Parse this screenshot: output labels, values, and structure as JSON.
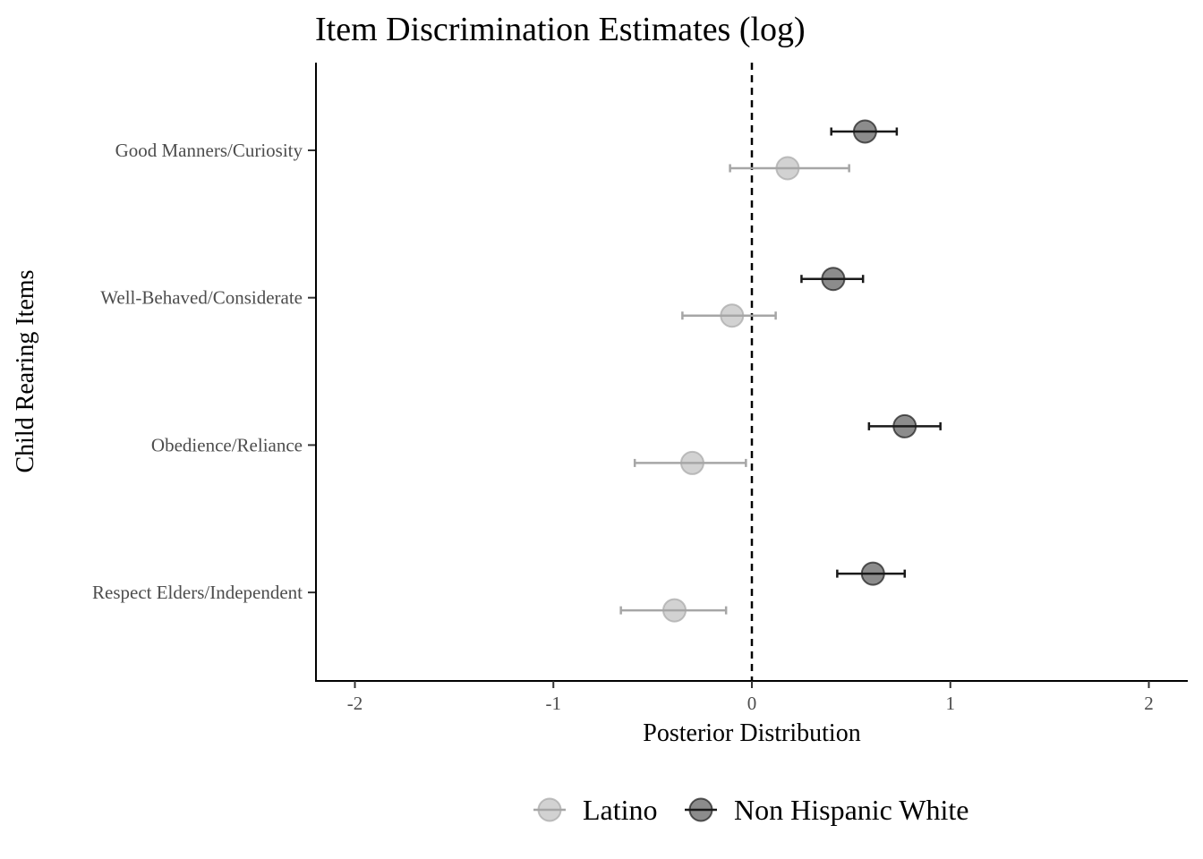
{
  "chart_data": {
    "type": "scatter",
    "title": "Item Discrimination Estimates (log)",
    "xlabel": "Posterior Distribution",
    "ylabel": "Child Rearing Items",
    "xlim": [
      -2.2,
      2.2
    ],
    "x_ticks": [
      -2,
      -1,
      0,
      1,
      2
    ],
    "x_tick_labels": [
      "-2",
      "-1",
      "0",
      "1",
      "2"
    ],
    "categories": [
      "Good Manners/Curiosity",
      "Well-Behaved/Considerate",
      "Obedience/Reliance",
      "Respect Elders/Independent"
    ],
    "reference_line": {
      "x": 0,
      "style": "dashed"
    },
    "grid": false,
    "legend_position": "bottom",
    "series": [
      {
        "name": "Latino",
        "color": "#a6a6a6",
        "estimates": [
          0.18,
          -0.1,
          -0.3,
          -0.39
        ],
        "lower": [
          -0.11,
          -0.35,
          -0.59,
          -0.66
        ],
        "upper": [
          0.49,
          0.12,
          -0.03,
          -0.13
        ]
      },
      {
        "name": "Non Hispanic White",
        "color": "#1a1a1a",
        "estimates": [
          0.57,
          0.41,
          0.77,
          0.61
        ],
        "lower": [
          0.4,
          0.25,
          0.59,
          0.43
        ],
        "upper": [
          0.73,
          0.56,
          0.95,
          0.77
        ]
      }
    ]
  }
}
